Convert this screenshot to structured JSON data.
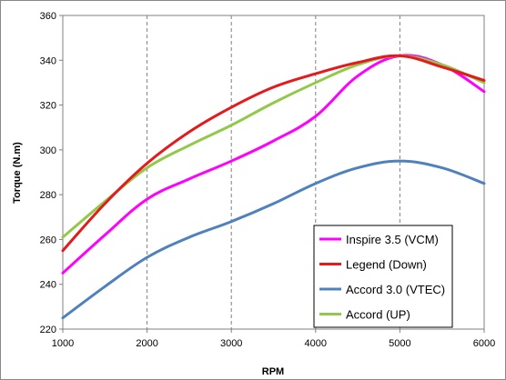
{
  "chart_data": {
    "type": "line",
    "xlabel": "RPM",
    "ylabel": "Torque (N.m)",
    "xlim": [
      1000,
      6000
    ],
    "ylim": [
      220,
      360
    ],
    "x_ticks": [
      1000,
      2000,
      3000,
      4000,
      5000,
      6000
    ],
    "y_ticks": [
      220,
      240,
      260,
      280,
      300,
      320,
      340,
      360
    ],
    "grid": {
      "x": "dashed-vertical",
      "y": "none"
    },
    "legend_position": "bottom-right",
    "series": [
      {
        "name": "Inspire 3.5 (VCM)",
        "color": "#ff00ff",
        "points": [
          [
            1000,
            245
          ],
          [
            1500,
            262
          ],
          [
            2000,
            278
          ],
          [
            2500,
            287
          ],
          [
            3000,
            295
          ],
          [
            3500,
            304
          ],
          [
            4000,
            315
          ],
          [
            4500,
            333
          ],
          [
            5000,
            342
          ],
          [
            5500,
            338
          ],
          [
            6000,
            326
          ]
        ]
      },
      {
        "name": "Legend (Down)",
        "color": "#e41a1c",
        "points": [
          [
            1000,
            255
          ],
          [
            1500,
            276
          ],
          [
            2000,
            294
          ],
          [
            2500,
            308
          ],
          [
            3000,
            319
          ],
          [
            3500,
            328
          ],
          [
            4000,
            334
          ],
          [
            4500,
            339
          ],
          [
            5000,
            342
          ],
          [
            5500,
            337
          ],
          [
            6000,
            331
          ]
        ]
      },
      {
        "name": "Accord 3.0 (VTEC)",
        "color": "#4f81bd",
        "points": [
          [
            1000,
            225
          ],
          [
            1500,
            239
          ],
          [
            2000,
            252
          ],
          [
            2500,
            261
          ],
          [
            3000,
            268
          ],
          [
            3500,
            276
          ],
          [
            4000,
            285
          ],
          [
            4500,
            292
          ],
          [
            5000,
            295
          ],
          [
            5500,
            292
          ],
          [
            6000,
            285
          ]
        ]
      },
      {
        "name": "Accord (UP)",
        "color": "#92c94a",
        "points": [
          [
            1000,
            261
          ],
          [
            1500,
            277
          ],
          [
            2000,
            292
          ],
          [
            2500,
            302
          ],
          [
            3000,
            311
          ],
          [
            3500,
            321
          ],
          [
            4000,
            330
          ],
          [
            4500,
            338
          ],
          [
            5000,
            342
          ],
          [
            5500,
            338
          ],
          [
            6000,
            330
          ]
        ]
      }
    ]
  }
}
